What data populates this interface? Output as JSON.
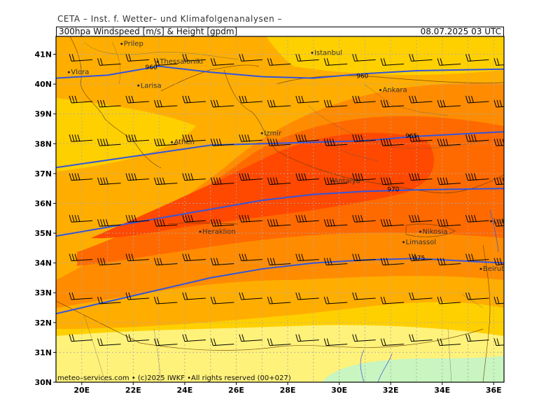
{
  "header": {
    "org": "CETA – Inst. f. Wetter– und Klimafolgenanalysen –",
    "parameter": "300hpa Windspeed [m/s] & Height [gpdm]",
    "valid_time": "08.07.2025 03 UTC"
  },
  "footer": {
    "credit": "meteo–services.com • (c)2025 IWKF •All rights reserved (00+027)"
  },
  "axes": {
    "lon_labels": [
      "20E",
      "22E",
      "24E",
      "26E",
      "28E",
      "30E",
      "32E",
      "34E",
      "36E"
    ],
    "lat_labels": [
      "41N",
      "40N",
      "39N",
      "38N",
      "37N",
      "36N",
      "35N",
      "34N",
      "33N",
      "32N",
      "31N",
      "30N"
    ],
    "lon_range": [
      19,
      36.4
    ],
    "lat_range": [
      30,
      41.6
    ]
  },
  "cities": [
    {
      "name": "Prilep",
      "lon": 21.55,
      "lat": 41.35
    },
    {
      "name": "Thessaloniki",
      "lon": 22.95,
      "lat": 40.75
    },
    {
      "name": "Vlora",
      "lon": 19.5,
      "lat": 40.4
    },
    {
      "name": "Larisa",
      "lon": 22.2,
      "lat": 39.95
    },
    {
      "name": "Istanbul",
      "lon": 28.95,
      "lat": 41.05
    },
    {
      "name": "Ankara",
      "lon": 31.6,
      "lat": 39.8
    },
    {
      "name": "Athen",
      "lon": 23.5,
      "lat": 38.05
    },
    {
      "name": "Izmir",
      "lon": 27.0,
      "lat": 38.35
    },
    {
      "name": "Antalya",
      "lon": 29.7,
      "lat": 36.75
    },
    {
      "name": "Heraklion",
      "lon": 24.6,
      "lat": 35.05
    },
    {
      "name": "Nikosia",
      "lon": 33.15,
      "lat": 35.05
    },
    {
      "name": "Limassol",
      "lon": 32.5,
      "lat": 34.7
    },
    {
      "name": "Latakia",
      "lon": 35.9,
      "lat": 35.4
    },
    {
      "name": "Beirut",
      "lon": 35.5,
      "lat": 33.8
    }
  ],
  "height_contours": [
    {
      "label": "960",
      "label_lon": 22.7,
      "label_lat": 40.5,
      "points": [
        [
          19,
          40.2
        ],
        [
          21,
          40.3
        ],
        [
          23,
          40.6
        ],
        [
          25,
          40.4
        ],
        [
          27,
          40.25
        ],
        [
          29,
          40.2
        ],
        [
          31,
          40.35
        ],
        [
          33,
          40.45
        ],
        [
          36.4,
          40.5
        ]
      ]
    },
    {
      "label": "960",
      "label_lon": 30.9,
      "label_lat": 40.2,
      "points": []
    },
    {
      "label": "965",
      "label_lon": 32.8,
      "label_lat": 38.2,
      "points": [
        [
          19,
          37.2
        ],
        [
          21,
          37.45
        ],
        [
          23,
          37.7
        ],
        [
          25,
          37.95
        ],
        [
          27,
          38.0
        ],
        [
          29,
          38.05
        ],
        [
          31,
          38.1
        ],
        [
          33,
          38.25
        ],
        [
          36.4,
          38.4
        ]
      ]
    },
    {
      "label": "970",
      "label_lon": 32.1,
      "label_lat": 36.4,
      "points": [
        [
          19,
          34.9
        ],
        [
          21,
          35.2
        ],
        [
          23,
          35.5
        ],
        [
          25,
          35.8
        ],
        [
          27,
          36.1
        ],
        [
          29,
          36.3
        ],
        [
          31,
          36.4
        ],
        [
          33,
          36.45
        ],
        [
          36.4,
          36.5
        ]
      ]
    },
    {
      "label": "975",
      "label_lon": 33.1,
      "label_lat": 34.1,
      "points": [
        [
          19,
          32.3
        ],
        [
          21,
          32.7
        ],
        [
          23,
          33.1
        ],
        [
          25,
          33.5
        ],
        [
          27,
          33.8
        ],
        [
          29,
          34.0
        ],
        [
          31,
          34.1
        ],
        [
          33,
          34.15
        ],
        [
          36.4,
          34.0
        ]
      ]
    }
  ],
  "wind_colors": {
    "light_green": "#c8f5c0",
    "pale_yellow": "#fff27a",
    "yellow": "#ffd000",
    "light_orange": "#ffae00",
    "orange": "#ff8c00",
    "dark_orange": "#ff6a00",
    "red_orange": "#ff4800",
    "contour": "#3355dd"
  },
  "wind_barbs_rows_lat": [
    40.7,
    39.3,
    38.0,
    36.7,
    35.3,
    34.0,
    32.7,
    31.3
  ],
  "wind_barbs_cols_lon": [
    19.6,
    20.7,
    21.8,
    22.9,
    24.0,
    25.1,
    26.2,
    27.3,
    28.4,
    29.5,
    30.6,
    31.7,
    32.8,
    33.9,
    35.0,
    36.1
  ]
}
